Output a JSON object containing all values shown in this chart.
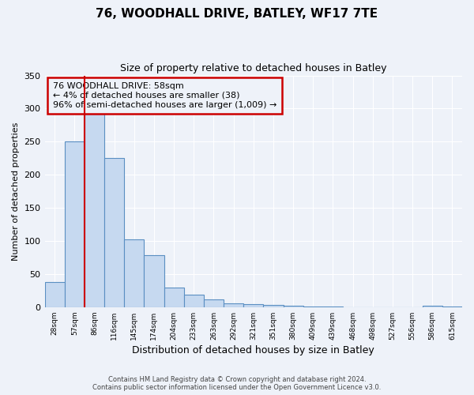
{
  "title": "76, WOODHALL DRIVE, BATLEY, WF17 7TE",
  "subtitle": "Size of property relative to detached houses in Batley",
  "xlabel": "Distribution of detached houses by size in Batley",
  "ylabel": "Number of detached properties",
  "bin_labels": [
    "28sqm",
    "57sqm",
    "86sqm",
    "116sqm",
    "145sqm",
    "174sqm",
    "204sqm",
    "233sqm",
    "263sqm",
    "292sqm",
    "321sqm",
    "351sqm",
    "380sqm",
    "409sqm",
    "439sqm",
    "468sqm",
    "498sqm",
    "527sqm",
    "556sqm",
    "586sqm",
    "615sqm"
  ],
  "bar_values": [
    38,
    250,
    292,
    225,
    103,
    78,
    30,
    19,
    12,
    6,
    4,
    3,
    2,
    1,
    1,
    0,
    0,
    0,
    0,
    2,
    1
  ],
  "bar_color": "#c6d9f0",
  "bar_edge_color": "#5a8fc2",
  "marker_line_color": "#cc0000",
  "annotation_line1": "76 WOODHALL DRIVE: 58sqm",
  "annotation_line2": "← 4% of detached houses are smaller (38)",
  "annotation_line3": "96% of semi-detached houses are larger (1,009) →",
  "annotation_box_color": "#cc0000",
  "ylim": [
    0,
    350
  ],
  "yticks": [
    0,
    50,
    100,
    150,
    200,
    250,
    300,
    350
  ],
  "footer1": "Contains HM Land Registry data © Crown copyright and database right 2024.",
  "footer2": "Contains public sector information licensed under the Open Government Licence v3.0.",
  "bg_color": "#eef2f9",
  "grid_color": "#ffffff"
}
